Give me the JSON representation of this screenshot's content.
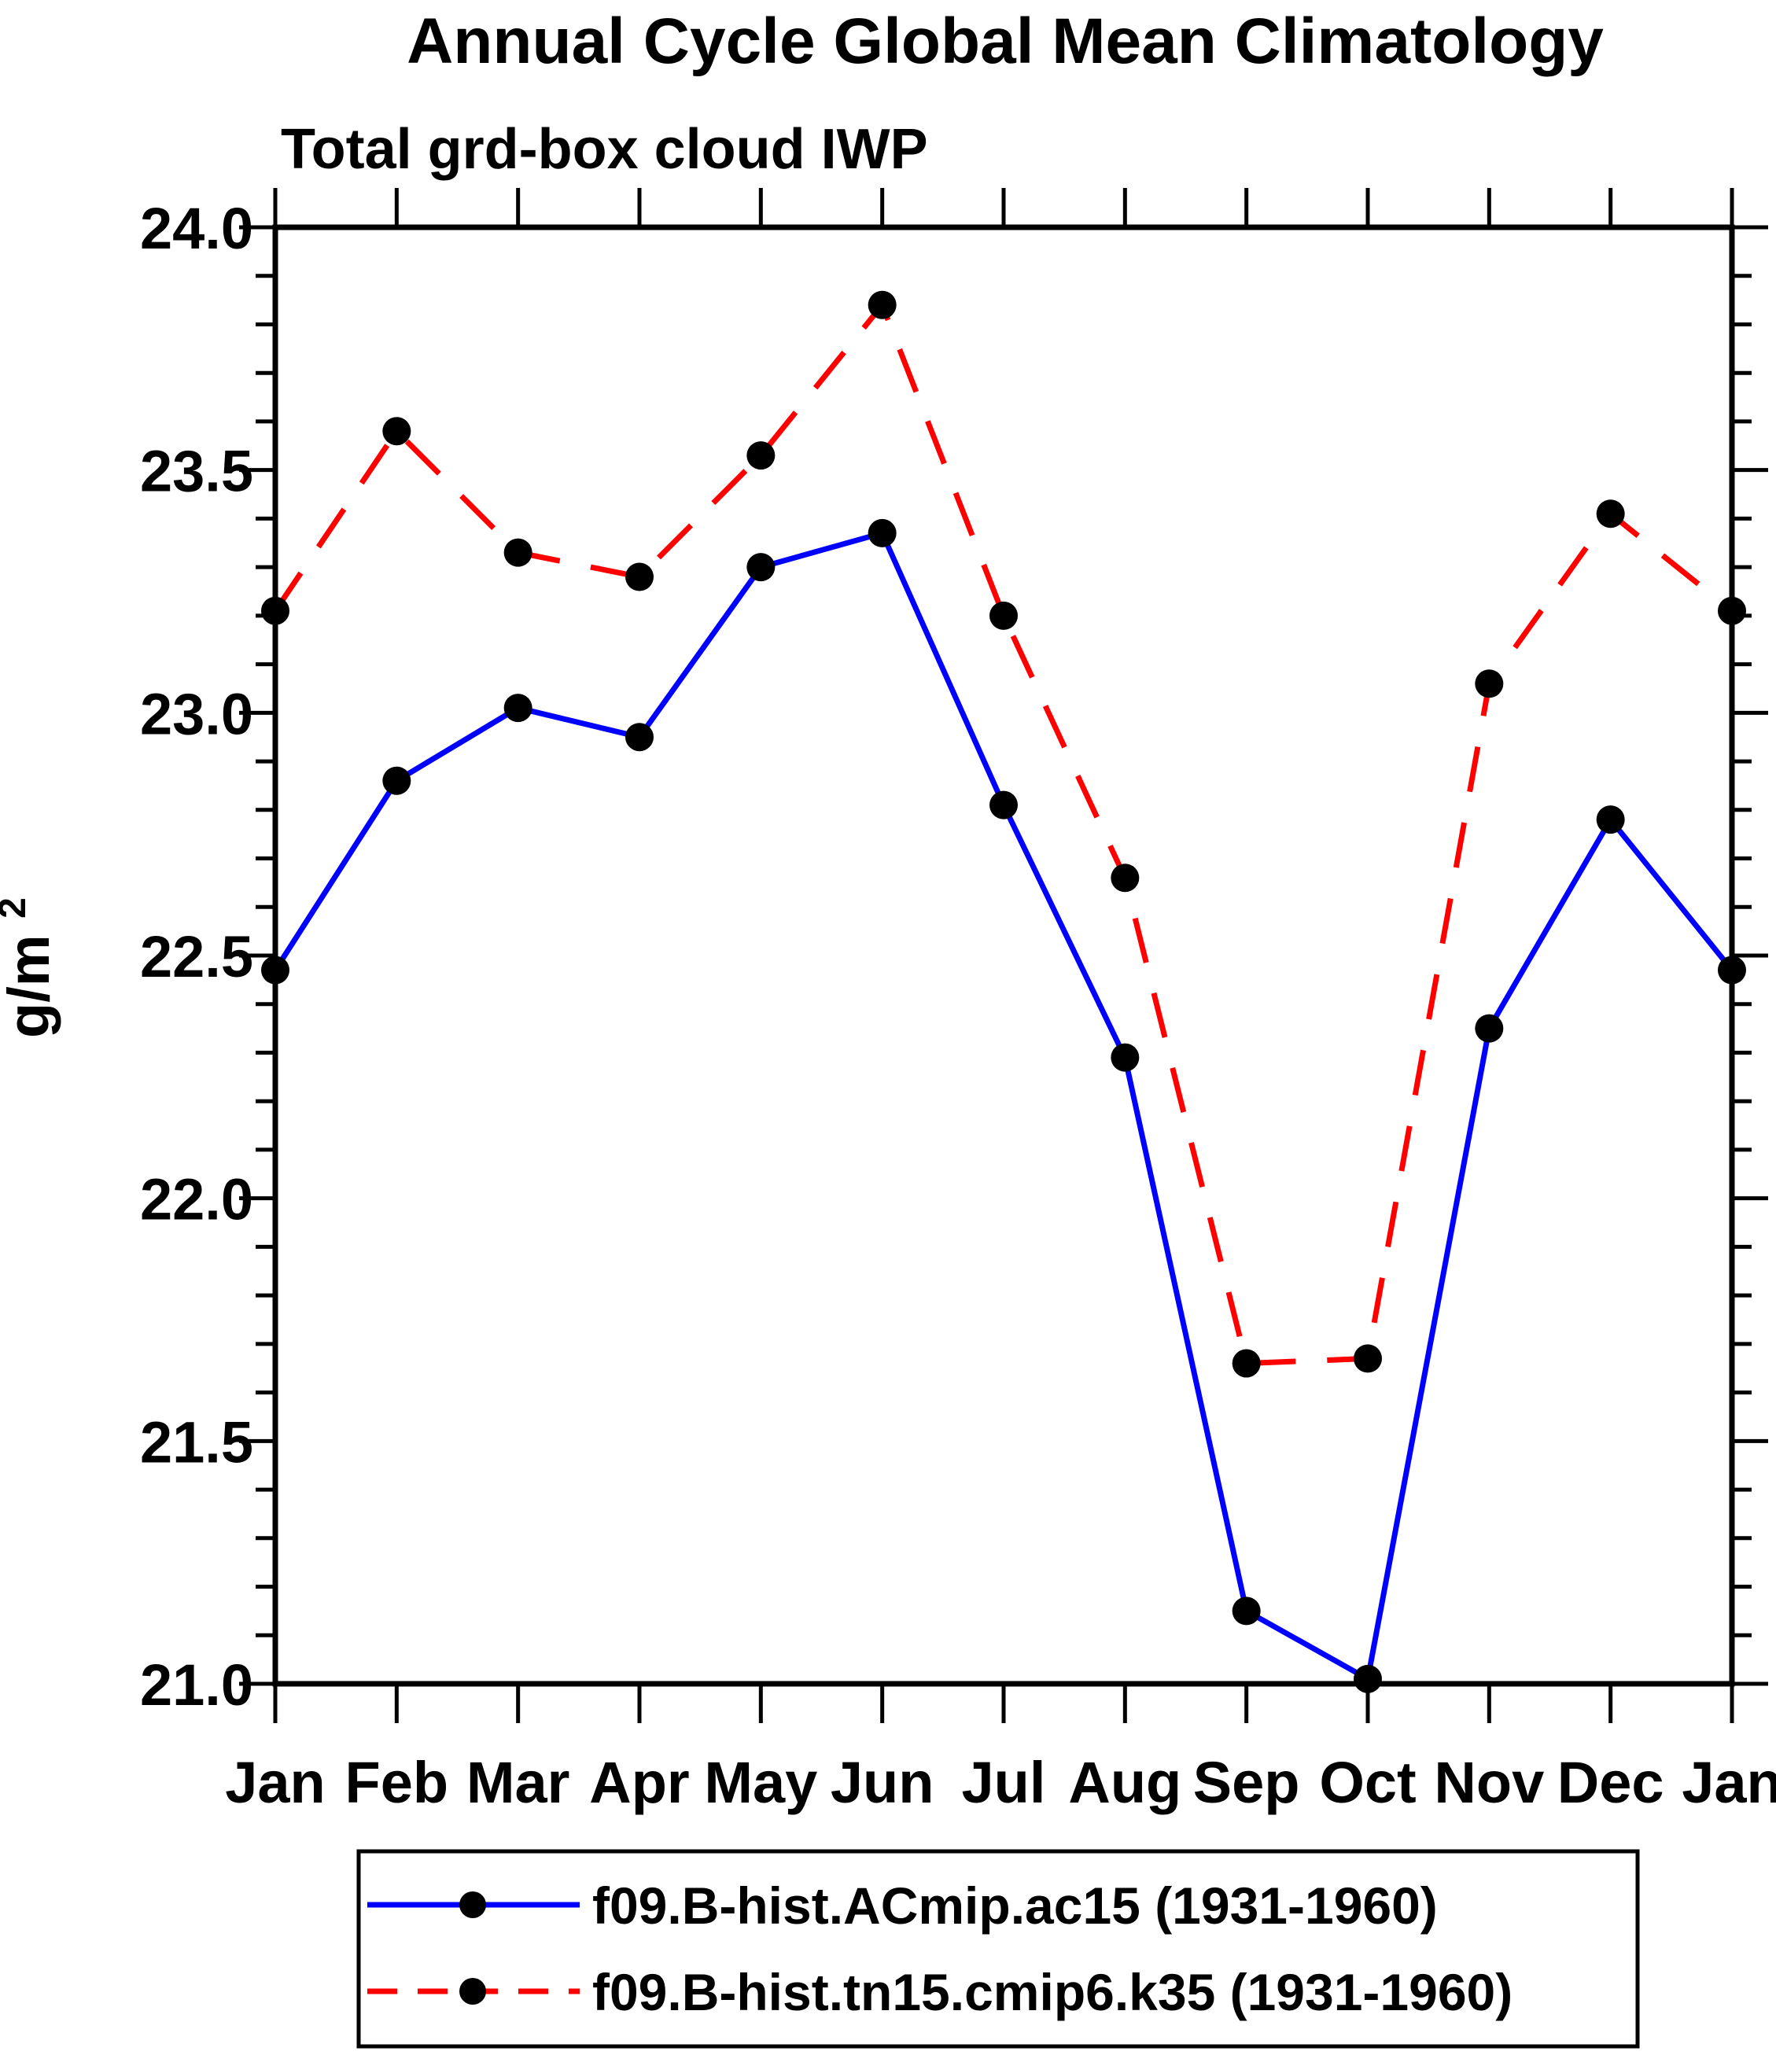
{
  "chart_data": {
    "type": "line",
    "title": "Annual Cycle Global Mean Climatology",
    "subtitle": "Total grd-box cloud IWP",
    "ylabel": "g/m²",
    "ylabel_base": "g/m",
    "ylabel_sup": "2",
    "categories": [
      "Jan",
      "Feb",
      "Mar",
      "Apr",
      "May",
      "Jun",
      "Jul",
      "Aug",
      "Sep",
      "Oct",
      "Nov",
      "Dec",
      "Jan"
    ],
    "ylim": [
      21.0,
      24.0
    ],
    "ytick_labels": [
      "21.0",
      "21.5",
      "22.0",
      "22.5",
      "23.0",
      "23.5",
      "24.0"
    ],
    "ytick_major_step": 0.5,
    "ytick_minor_step": 0.1,
    "grid": false,
    "legend_position": "bottom",
    "axis_color": "#000000",
    "marker_color": "#000000",
    "series": [
      {
        "name": "f09.B-hist.ACmip.ac15 (1931-1960)",
        "color": "#0000ff",
        "style": "solid",
        "values": [
          22.47,
          22.86,
          23.01,
          22.95,
          23.3,
          23.37,
          22.81,
          22.29,
          21.15,
          21.01,
          22.35,
          22.78,
          22.47
        ]
      },
      {
        "name": "f09.B-hist.tn15.cmip6.k35 (1931-1960)",
        "color": "#ff0000",
        "style": "dashed",
        "values": [
          23.21,
          23.58,
          23.33,
          23.28,
          23.53,
          23.84,
          23.2,
          22.66,
          21.66,
          21.67,
          23.06,
          23.41,
          23.21
        ]
      }
    ]
  }
}
